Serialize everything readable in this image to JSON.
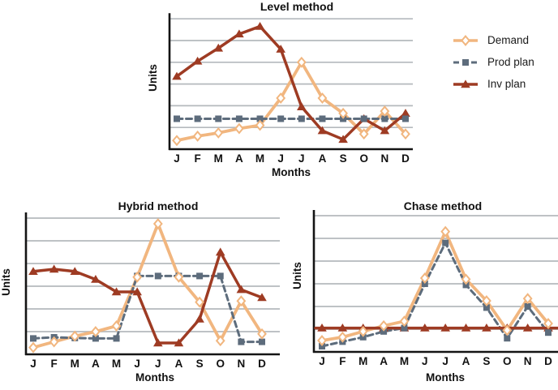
{
  "figure": {
    "background": "#ffffff"
  },
  "styles": {
    "demand_color": "#F1B67F",
    "prod_plan_color": "#5D6C7C",
    "inv_plan_color": "#9E3B23",
    "gridline_color": "#b5b9bd",
    "axis_color": "#141414",
    "text_color": "#111111",
    "marker_fill_demand": "#ffffff"
  },
  "legend": {
    "items": [
      {
        "label": "Demand",
        "marker": "diamond",
        "line_style": "solid",
        "color": "#F1B67F"
      },
      {
        "label": "Prod plan",
        "marker": "square",
        "line_style": "dashed",
        "color": "#5D6C7C"
      },
      {
        "label": "Inv plan",
        "marker": "triangle",
        "line_style": "solid",
        "color": "#9E3B23"
      }
    ]
  },
  "chart_data": [
    {
      "type": "line",
      "title": "Level method",
      "xlabel": "Months",
      "ylabel": "Units",
      "categories": [
        "J",
        "F",
        "M",
        "A",
        "M",
        "J",
        "J",
        "A",
        "S",
        "O",
        "N",
        "D"
      ],
      "y_axis": {
        "numeric_labels": false,
        "gridlines": 6,
        "value_scale": "gridline-units",
        "ylim": [
          0,
          6
        ],
        "grid": true
      },
      "legend_position": "right-of-figure",
      "series": [
        {
          "name": "Demand",
          "marker": "diamond",
          "line_style": "solid",
          "color": "#F1B67F",
          "values": [
            0.4,
            0.6,
            0.75,
            0.95,
            1.1,
            2.35,
            4.0,
            2.35,
            1.65,
            0.7,
            1.75,
            0.7
          ]
        },
        {
          "name": "Prod plan",
          "marker": "square",
          "line_style": "dashed",
          "color": "#5D6C7C",
          "values": [
            1.4,
            1.4,
            1.4,
            1.4,
            1.4,
            1.4,
            1.4,
            1.4,
            1.4,
            1.4,
            1.4,
            1.4
          ]
        },
        {
          "name": "Inv plan",
          "marker": "triangle",
          "line_style": "solid",
          "color": "#9E3B23",
          "values": [
            3.35,
            4.05,
            4.65,
            5.3,
            5.65,
            4.6,
            1.95,
            0.85,
            0.45,
            1.4,
            0.85,
            1.65
          ]
        }
      ]
    },
    {
      "type": "line",
      "title": "Hybrid method",
      "xlabel": "Months",
      "ylabel": "Units",
      "categories": [
        "J",
        "F",
        "M",
        "A",
        "M",
        "J",
        "J",
        "A",
        "S",
        "O",
        "N",
        "D"
      ],
      "y_axis": {
        "numeric_labels": false,
        "gridlines": 6,
        "value_scale": "gridline-units",
        "ylim": [
          0,
          6
        ],
        "grid": true
      },
      "series": [
        {
          "name": "Demand",
          "marker": "diamond",
          "line_style": "solid",
          "color": "#F1B67F",
          "values": [
            0.3,
            0.55,
            0.8,
            1.0,
            1.25,
            3.4,
            5.75,
            3.4,
            2.3,
            0.6,
            2.35,
            0.9
          ]
        },
        {
          "name": "Prod plan",
          "marker": "square",
          "line_style": "dashed",
          "color": "#5D6C7C",
          "values": [
            0.7,
            0.75,
            0.72,
            0.7,
            0.7,
            3.45,
            3.45,
            3.45,
            3.45,
            3.45,
            0.55,
            0.55
          ]
        },
        {
          "name": "Inv plan",
          "marker": "triangle",
          "line_style": "solid",
          "color": "#9E3B23",
          "values": [
            3.65,
            3.75,
            3.65,
            3.3,
            2.75,
            2.75,
            0.5,
            0.5,
            1.55,
            4.5,
            2.85,
            2.5
          ]
        }
      ]
    },
    {
      "type": "line",
      "title": "Chase method",
      "xlabel": "Months",
      "ylabel": "Units",
      "categories": [
        "J",
        "F",
        "M",
        "A",
        "M",
        "J",
        "J",
        "A",
        "S",
        "O",
        "N",
        "D"
      ],
      "y_axis": {
        "numeric_labels": false,
        "gridlines": 6,
        "value_scale": "gridline-units",
        "ylim": [
          0,
          6
        ],
        "grid": true
      },
      "series": [
        {
          "name": "Demand",
          "marker": "diamond",
          "line_style": "solid",
          "color": "#F1B67F",
          "values": [
            0.5,
            0.65,
            0.9,
            1.15,
            1.35,
            3.25,
            5.3,
            3.2,
            2.25,
            0.95,
            2.35,
            1.25
          ]
        },
        {
          "name": "Prod plan",
          "marker": "square",
          "line_style": "dashed",
          "color": "#5D6C7C",
          "values": [
            0.25,
            0.45,
            0.65,
            0.9,
            1.05,
            3.0,
            4.8,
            2.95,
            1.95,
            0.6,
            2.0,
            0.85
          ]
        },
        {
          "name": "Inv plan",
          "marker": "triangle",
          "line_style": "solid",
          "color": "#9E3B23",
          "extends_full_width": true,
          "values": [
            1.05,
            1.05,
            1.05,
            1.05,
            1.05,
            1.05,
            1.05,
            1.05,
            1.05,
            1.05,
            1.05,
            1.05
          ]
        }
      ]
    }
  ]
}
